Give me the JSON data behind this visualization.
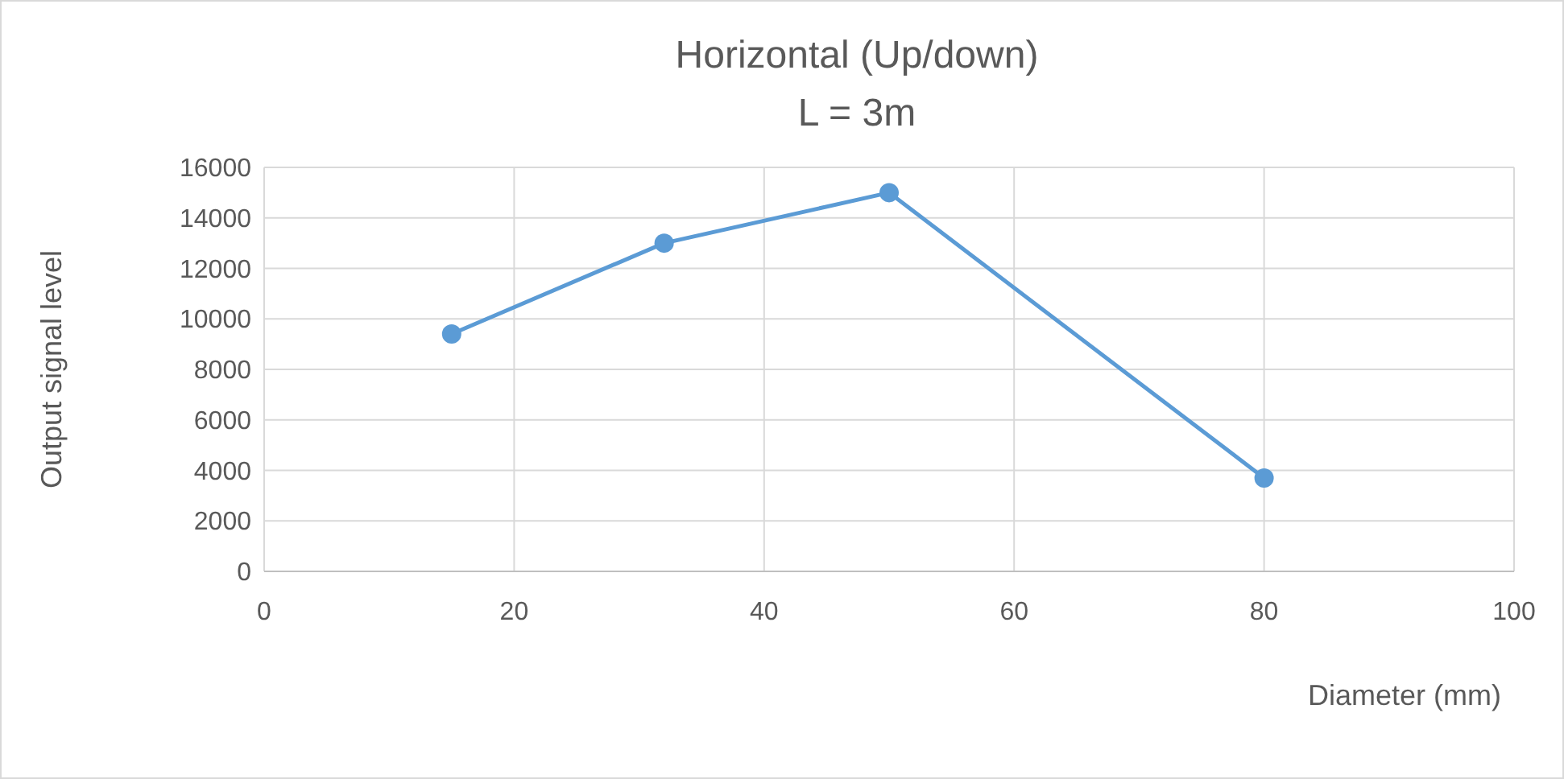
{
  "chart_data": {
    "type": "line",
    "title": "Horizontal (Up/down)",
    "subtitle": "L = 3m",
    "xlabel": "Diameter (mm)",
    "ylabel": "Output signal level",
    "x": [
      15,
      32,
      50,
      80
    ],
    "series": [
      {
        "color": "#5b9bd5",
        "values": [
          9400,
          13000,
          15000,
          3700
        ]
      }
    ],
    "xlim": [
      0,
      100
    ],
    "xticks": [
      0,
      20,
      40,
      60,
      80,
      100
    ],
    "ylim": [
      0,
      16000
    ],
    "yticks": [
      0,
      2000,
      4000,
      6000,
      8000,
      10000,
      12000,
      14000,
      16000
    ],
    "grid": true,
    "marker": "circle",
    "line_style": "solid"
  }
}
